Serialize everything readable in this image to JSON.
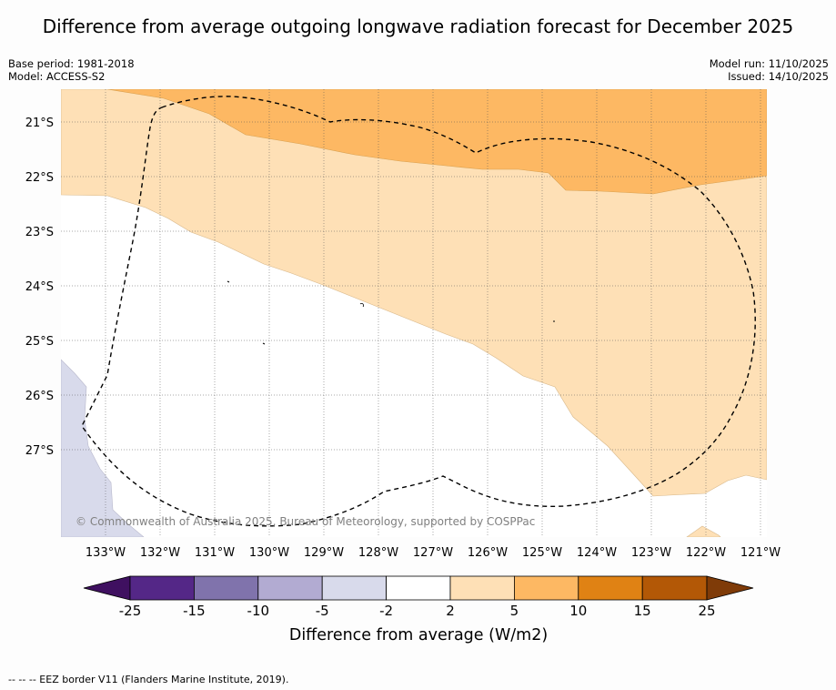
{
  "title": "Difference from average outgoing longwave radiation forecast for December 2025",
  "base_period": "Base period: 1981-2018",
  "model": "Model: ACCESS-S2",
  "model_run": "Model run: 11/10/2025",
  "issued": "Issued: 14/10/2025",
  "copyright": "© Commonwealth of Australia 2025, Bureau of Meteorology, supported by COSPPac",
  "lat_labels": [
    "21°S",
    "22°S",
    "23°S",
    "24°S",
    "25°S",
    "26°S",
    "27°S"
  ],
  "lon_labels": [
    "133°W",
    "132°W",
    "131°W",
    "130°W",
    "129°W",
    "128°W",
    "127°W",
    "126°W",
    "125°W",
    "124°W",
    "123°W",
    "122°W",
    "121°W"
  ],
  "colorbar": {
    "title": "Difference from average (W/m2)",
    "ticks": [
      "-25",
      "-15",
      "-10",
      "-5",
      "-2",
      "2",
      "5",
      "10",
      "15",
      "25"
    ],
    "colors": [
      "#3f1060",
      "#542787",
      "#8073ac",
      "#b2abd2",
      "#d8daeb",
      "#ffffff",
      "#fee0b6",
      "#fdb863",
      "#e08214",
      "#b35806",
      "#7f3b08"
    ]
  },
  "footer": "--  --  -- EEZ border V11 (Flanders Marine Institute, 2019)."
}
